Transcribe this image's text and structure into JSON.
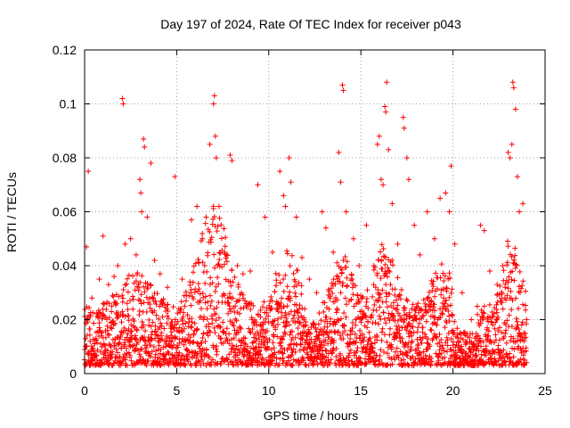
{
  "chart_data": {
    "type": "scatter",
    "title": "Day 197 of 2024, Rate Of TEC Index for receiver p043",
    "xlabel": "GPS time / hours",
    "ylabel": "ROTI / TECUs",
    "xlim": [
      0,
      25
    ],
    "ylim": [
      0,
      0.12
    ],
    "x_ticks": [
      0,
      5,
      10,
      15,
      20,
      25
    ],
    "y_ticks": [
      0,
      0.02,
      0.04,
      0.06,
      0.08,
      0.1,
      0.12
    ],
    "x_tick_labels": [
      "0",
      "5",
      "10",
      "15",
      "20",
      "25"
    ],
    "y_tick_labels": [
      "0",
      "0.02",
      "0.04",
      "0.06",
      "0.08",
      "0.1",
      "0.12"
    ],
    "grid": true,
    "marker": "plus",
    "marker_color": "#ff0000",
    "series": [
      {
        "points": [
          [
            0.1,
            0.047
          ],
          [
            0.2,
            0.075
          ],
          [
            0.4,
            0.028
          ],
          [
            0.8,
            0.035
          ],
          [
            1.0,
            0.051
          ],
          [
            1.3,
            0.033
          ],
          [
            1.6,
            0.036
          ],
          [
            1.8,
            0.04
          ],
          [
            2.05,
            0.102
          ],
          [
            2.1,
            0.1
          ],
          [
            2.2,
            0.048
          ],
          [
            2.5,
            0.05
          ],
          [
            2.8,
            0.044
          ],
          [
            3.0,
            0.072
          ],
          [
            3.05,
            0.067
          ],
          [
            3.1,
            0.06
          ],
          [
            3.2,
            0.087
          ],
          [
            3.25,
            0.084
          ],
          [
            3.4,
            0.058
          ],
          [
            3.6,
            0.078
          ],
          [
            3.8,
            0.042
          ],
          [
            4.1,
            0.037
          ],
          [
            4.5,
            0.032
          ],
          [
            4.9,
            0.073
          ],
          [
            5.3,
            0.035
          ],
          [
            5.8,
            0.057
          ],
          [
            6.1,
            0.062
          ],
          [
            6.4,
            0.05
          ],
          [
            6.6,
            0.058
          ],
          [
            6.8,
            0.085
          ],
          [
            7.0,
            0.1
          ],
          [
            7.05,
            0.103
          ],
          [
            7.1,
            0.088
          ],
          [
            7.15,
            0.08
          ],
          [
            7.3,
            0.062
          ],
          [
            7.6,
            0.045
          ],
          [
            7.9,
            0.081
          ],
          [
            8.0,
            0.079
          ],
          [
            8.3,
            0.04
          ],
          [
            8.6,
            0.037
          ],
          [
            9.0,
            0.038
          ],
          [
            9.4,
            0.07
          ],
          [
            9.8,
            0.058
          ],
          [
            10.2,
            0.045
          ],
          [
            10.6,
            0.075
          ],
          [
            10.8,
            0.066
          ],
          [
            10.9,
            0.062
          ],
          [
            11.1,
            0.08
          ],
          [
            11.2,
            0.071
          ],
          [
            11.5,
            0.058
          ],
          [
            11.8,
            0.043
          ],
          [
            12.2,
            0.035
          ],
          [
            12.6,
            0.03
          ],
          [
            12.9,
            0.06
          ],
          [
            13.1,
            0.054
          ],
          [
            13.5,
            0.045
          ],
          [
            13.8,
            0.082
          ],
          [
            13.9,
            0.071
          ],
          [
            14.0,
            0.107
          ],
          [
            14.05,
            0.105
          ],
          [
            14.2,
            0.06
          ],
          [
            14.6,
            0.05
          ],
          [
            14.9,
            0.04
          ],
          [
            15.3,
            0.055
          ],
          [
            15.7,
            0.04
          ],
          [
            15.9,
            0.085
          ],
          [
            16.0,
            0.088
          ],
          [
            16.1,
            0.072
          ],
          [
            16.2,
            0.07
          ],
          [
            16.3,
            0.099
          ],
          [
            16.35,
            0.097
          ],
          [
            16.4,
            0.108
          ],
          [
            16.5,
            0.083
          ],
          [
            16.7,
            0.063
          ],
          [
            17.0,
            0.048
          ],
          [
            17.3,
            0.095
          ],
          [
            17.35,
            0.091
          ],
          [
            17.5,
            0.08
          ],
          [
            17.6,
            0.072
          ],
          [
            17.9,
            0.055
          ],
          [
            18.2,
            0.044
          ],
          [
            18.6,
            0.06
          ],
          [
            19.0,
            0.05
          ],
          [
            19.3,
            0.065
          ],
          [
            19.6,
            0.067
          ],
          [
            19.8,
            0.06
          ],
          [
            19.9,
            0.077
          ],
          [
            20.1,
            0.048
          ],
          [
            20.5,
            0.03
          ],
          [
            21.0,
            0.02
          ],
          [
            21.5,
            0.055
          ],
          [
            21.7,
            0.053
          ],
          [
            22.0,
            0.038
          ],
          [
            22.4,
            0.033
          ],
          [
            22.7,
            0.04
          ],
          [
            23.0,
            0.082
          ],
          [
            23.1,
            0.08
          ],
          [
            23.2,
            0.085
          ],
          [
            23.25,
            0.108
          ],
          [
            23.3,
            0.106
          ],
          [
            23.4,
            0.098
          ],
          [
            23.5,
            0.073
          ],
          [
            23.6,
            0.06
          ],
          [
            23.8,
            0.063
          ],
          [
            24.0,
            0.02
          ]
        ]
      }
    ]
  }
}
